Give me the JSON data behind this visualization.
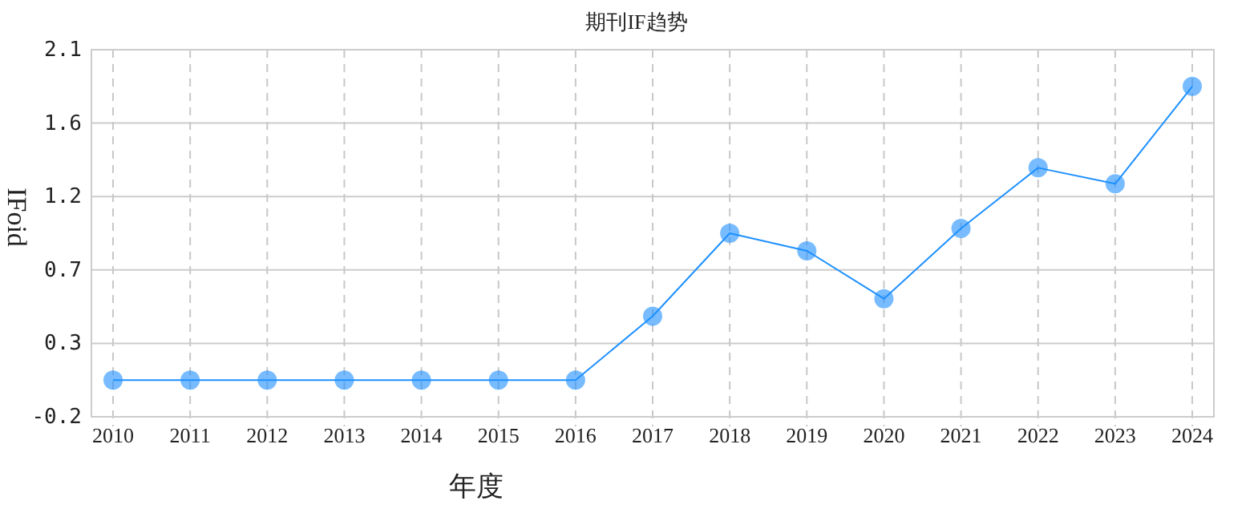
{
  "chart_data": {
    "type": "line",
    "title": "期刊IF趋势",
    "xlabel": "年度",
    "ylabel": "IFoid",
    "categories": [
      "2010",
      "2011",
      "2012",
      "2013",
      "2014",
      "2015",
      "2016",
      "2017",
      "2018",
      "2019",
      "2020",
      "2021",
      "2022",
      "2023",
      "2024"
    ],
    "series": [
      {
        "color": "#1e90ff",
        "values": [
          0.03,
          0.03,
          0.03,
          0.03,
          0.03,
          0.03,
          0.03,
          0.43,
          0.95,
          0.84,
          0.54,
          0.98,
          1.36,
          1.26,
          1.87
        ]
      }
    ],
    "ylim": [
      -0.2,
      2.1
    ],
    "yticks": [
      -0.2,
      {
        "value": 0.26,
        "label": "0.3"
      },
      {
        "value": 0.72,
        "label": "0.7"
      },
      {
        "value": 1.18,
        "label": "1.2"
      },
      {
        "value": 1.64,
        "label": "1.6"
      },
      2.1
    ],
    "grid": true,
    "marker": "circle",
    "line_style": "solid"
  }
}
